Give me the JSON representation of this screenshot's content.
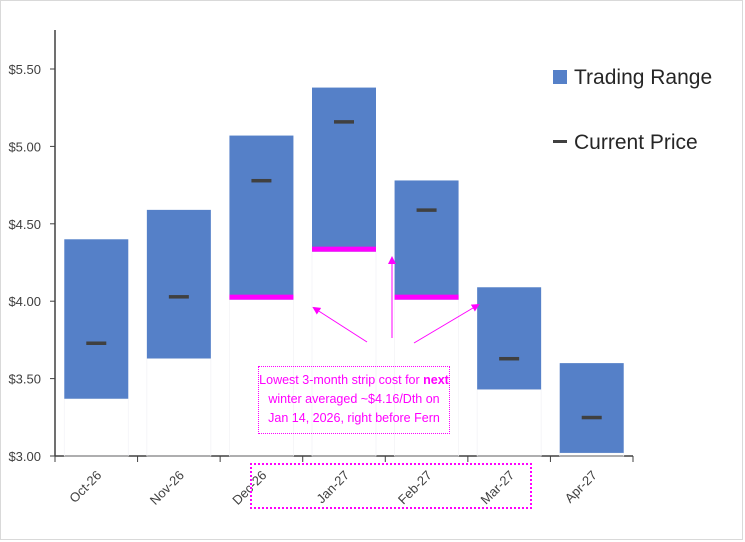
{
  "chart_data": {
    "type": "bar",
    "subtype": "floating-range",
    "categories": [
      "Oct-26",
      "Nov-26",
      "Dec-26",
      "Jan-27",
      "Feb-27",
      "Mar-27",
      "Apr-27"
    ],
    "series": [
      {
        "name": "Trading Range",
        "low": [
          3.37,
          3.63,
          4.01,
          4.32,
          4.01,
          3.43,
          3.02
        ],
        "high": [
          4.4,
          4.59,
          5.07,
          5.38,
          4.78,
          4.09,
          3.6
        ]
      },
      {
        "name": "Current Price",
        "values": [
          3.73,
          4.03,
          4.78,
          5.16,
          4.59,
          3.63,
          3.25
        ]
      }
    ],
    "highlighted_lows": [
      "Dec-26",
      "Jan-27",
      "Feb-27"
    ],
    "ylim": [
      3.0,
      5.75
    ],
    "yticks": [
      3.0,
      3.5,
      4.0,
      4.5,
      5.0,
      5.5
    ],
    "ytick_labels": [
      "$3.00",
      "$3.50",
      "$4.00",
      "$4.50",
      "$5.00",
      "$5.50"
    ],
    "legend_placement": "top-right",
    "grid": false,
    "colors": {
      "range": "#5580c8",
      "current": "#404040",
      "highlight": "#ff00ff"
    },
    "annotation": {
      "before": "Lowest 3-month strip cost for ",
      "bold": "next",
      "after": " winter averaged ~$4.16/Dth on Jan 14, 2026, right before Fern"
    }
  }
}
